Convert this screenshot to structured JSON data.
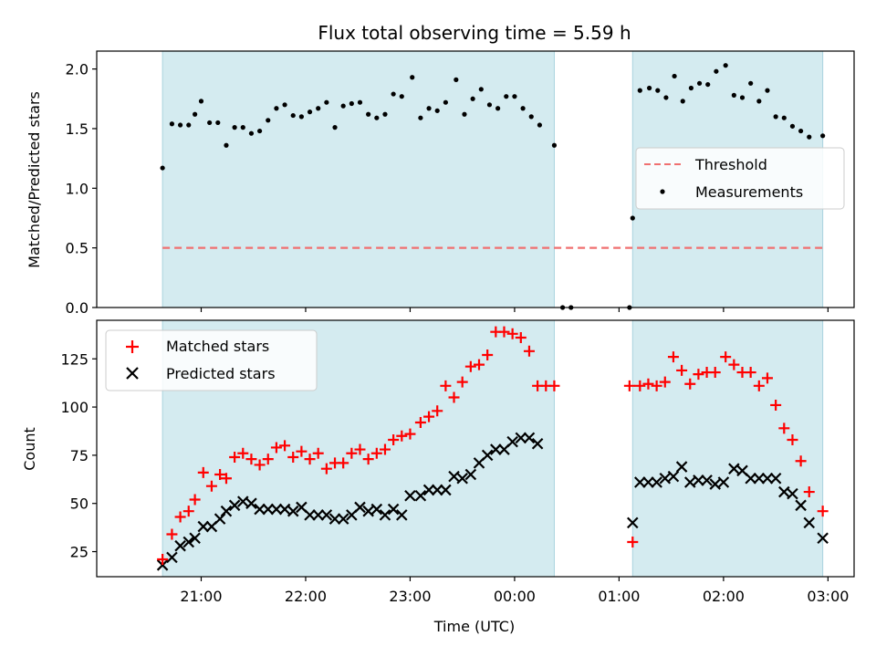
{
  "chart_data": {
    "type": "scatter",
    "title": "Flux total observing time = 5.59 h",
    "xlabel": "Time (UTC)",
    "x_ticks": [
      "21:00",
      "22:00",
      "23:00",
      "00:00",
      "01:00",
      "02:00",
      "03:00"
    ],
    "x_tick_hours": [
      21,
      22,
      23,
      24,
      25,
      26,
      27
    ],
    "x_range_hours": [
      20.0,
      27.25
    ],
    "shaded_spans_hours": [
      [
        20.63,
        24.38
      ],
      [
        25.13,
        26.95
      ]
    ],
    "colors": {
      "shade": "#d4ebf0",
      "shade_edge": "#a9d3de",
      "threshold": "#f07070",
      "matched": "#ff0000",
      "predicted": "#000000",
      "measurement": "#000000"
    },
    "top_panel": {
      "ylabel": "Matched/Predicted stars",
      "ylim": [
        0.0,
        2.15
      ],
      "y_ticks": [
        0.0,
        0.5,
        1.0,
        1.5,
        2.0
      ],
      "y_tick_labels": [
        "0.0",
        "0.5",
        "1.0",
        "1.5",
        "2.0"
      ],
      "threshold": 0.5,
      "legend": [
        "Threshold",
        "Measurements"
      ],
      "legend_position": "center-right",
      "measurements": [
        [
          20.63,
          1.17
        ],
        [
          20.72,
          1.54
        ],
        [
          20.8,
          1.53
        ],
        [
          20.88,
          1.53
        ],
        [
          20.94,
          1.62
        ],
        [
          21.0,
          1.73
        ],
        [
          21.08,
          1.55
        ],
        [
          21.16,
          1.55
        ],
        [
          21.24,
          1.36
        ],
        [
          21.32,
          1.51
        ],
        [
          21.4,
          1.51
        ],
        [
          21.48,
          1.46
        ],
        [
          21.56,
          1.48
        ],
        [
          21.64,
          1.57
        ],
        [
          21.72,
          1.67
        ],
        [
          21.8,
          1.7
        ],
        [
          21.88,
          1.61
        ],
        [
          21.96,
          1.6
        ],
        [
          22.04,
          1.64
        ],
        [
          22.12,
          1.67
        ],
        [
          22.2,
          1.72
        ],
        [
          22.28,
          1.51
        ],
        [
          22.36,
          1.69
        ],
        [
          22.44,
          1.71
        ],
        [
          22.52,
          1.72
        ],
        [
          22.6,
          1.62
        ],
        [
          22.68,
          1.59
        ],
        [
          22.76,
          1.62
        ],
        [
          22.84,
          1.79
        ],
        [
          22.92,
          1.77
        ],
        [
          23.02,
          1.93
        ],
        [
          23.1,
          1.59
        ],
        [
          23.18,
          1.67
        ],
        [
          23.26,
          1.65
        ],
        [
          23.34,
          1.72
        ],
        [
          23.44,
          1.91
        ],
        [
          23.52,
          1.62
        ],
        [
          23.6,
          1.75
        ],
        [
          23.68,
          1.83
        ],
        [
          23.76,
          1.7
        ],
        [
          23.84,
          1.67
        ],
        [
          23.92,
          1.77
        ],
        [
          24.0,
          1.77
        ],
        [
          24.08,
          1.67
        ],
        [
          24.16,
          1.6
        ],
        [
          24.24,
          1.53
        ],
        [
          24.38,
          1.36
        ],
        [
          24.46,
          0.0
        ],
        [
          24.54,
          0.0
        ],
        [
          25.1,
          0.0
        ],
        [
          25.13,
          0.75
        ],
        [
          25.2,
          1.82
        ],
        [
          25.29,
          1.84
        ],
        [
          25.37,
          1.82
        ],
        [
          25.45,
          1.76
        ],
        [
          25.53,
          1.94
        ],
        [
          25.61,
          1.73
        ],
        [
          25.69,
          1.84
        ],
        [
          25.77,
          1.88
        ],
        [
          25.85,
          1.87
        ],
        [
          25.93,
          1.98
        ],
        [
          26.02,
          2.03
        ],
        [
          26.1,
          1.78
        ],
        [
          26.18,
          1.76
        ],
        [
          26.26,
          1.88
        ],
        [
          26.34,
          1.73
        ],
        [
          26.42,
          1.82
        ],
        [
          26.5,
          1.6
        ],
        [
          26.58,
          1.59
        ],
        [
          26.66,
          1.52
        ],
        [
          26.74,
          1.48
        ],
        [
          26.82,
          1.43
        ],
        [
          26.95,
          1.44
        ]
      ]
    },
    "bottom_panel": {
      "ylabel": "Count",
      "ylim": [
        12,
        145
      ],
      "y_ticks": [
        25,
        50,
        75,
        100,
        125
      ],
      "y_tick_labels": [
        "25",
        "50",
        "75",
        "100",
        "125"
      ],
      "legend": [
        "Matched stars",
        "Predicted stars"
      ],
      "legend_position": "upper-left",
      "matched": [
        [
          20.63,
          21
        ],
        [
          20.72,
          34
        ],
        [
          20.8,
          43
        ],
        [
          20.88,
          46
        ],
        [
          20.94,
          52
        ],
        [
          21.02,
          66
        ],
        [
          21.1,
          59
        ],
        [
          21.18,
          65
        ],
        [
          21.24,
          63
        ],
        [
          21.32,
          74
        ],
        [
          21.4,
          76
        ],
        [
          21.48,
          73
        ],
        [
          21.56,
          70
        ],
        [
          21.64,
          73
        ],
        [
          21.72,
          79
        ],
        [
          21.8,
          80
        ],
        [
          21.88,
          74
        ],
        [
          21.96,
          77
        ],
        [
          22.04,
          73
        ],
        [
          22.12,
          76
        ],
        [
          22.2,
          68
        ],
        [
          22.28,
          71
        ],
        [
          22.36,
          71
        ],
        [
          22.44,
          76
        ],
        [
          22.52,
          78
        ],
        [
          22.6,
          73
        ],
        [
          22.68,
          76
        ],
        [
          22.76,
          78
        ],
        [
          22.84,
          83
        ],
        [
          22.92,
          85
        ],
        [
          23.0,
          86
        ],
        [
          23.1,
          92
        ],
        [
          23.18,
          95
        ],
        [
          23.26,
          98
        ],
        [
          23.34,
          111
        ],
        [
          23.42,
          105
        ],
        [
          23.5,
          113
        ],
        [
          23.58,
          121
        ],
        [
          23.66,
          122
        ],
        [
          23.74,
          127
        ],
        [
          23.82,
          139
        ],
        [
          23.9,
          139
        ],
        [
          23.98,
          138
        ],
        [
          24.06,
          136
        ],
        [
          24.14,
          129
        ],
        [
          24.22,
          111
        ],
        [
          24.3,
          111
        ],
        [
          24.38,
          111
        ],
        [
          25.1,
          111
        ],
        [
          25.13,
          30
        ],
        [
          25.2,
          111
        ],
        [
          25.28,
          112
        ],
        [
          25.36,
          111
        ],
        [
          25.44,
          113
        ],
        [
          25.52,
          126
        ],
        [
          25.6,
          119
        ],
        [
          25.68,
          112
        ],
        [
          25.76,
          117
        ],
        [
          25.84,
          118
        ],
        [
          25.92,
          118
        ],
        [
          26.02,
          126
        ],
        [
          26.1,
          122
        ],
        [
          26.18,
          118
        ],
        [
          26.26,
          118
        ],
        [
          26.34,
          111
        ],
        [
          26.42,
          115
        ],
        [
          26.5,
          101
        ],
        [
          26.58,
          89
        ],
        [
          26.66,
          83
        ],
        [
          26.74,
          72
        ],
        [
          26.82,
          56
        ],
        [
          26.95,
          46
        ]
      ],
      "predicted": [
        [
          20.63,
          18
        ],
        [
          20.72,
          22
        ],
        [
          20.8,
          28
        ],
        [
          20.88,
          30
        ],
        [
          20.94,
          32
        ],
        [
          21.02,
          38
        ],
        [
          21.1,
          38
        ],
        [
          21.18,
          42
        ],
        [
          21.24,
          46
        ],
        [
          21.32,
          49
        ],
        [
          21.4,
          51
        ],
        [
          21.48,
          50
        ],
        [
          21.56,
          47
        ],
        [
          21.64,
          47
        ],
        [
          21.72,
          47
        ],
        [
          21.8,
          47
        ],
        [
          21.88,
          46
        ],
        [
          21.96,
          48
        ],
        [
          22.04,
          44
        ],
        [
          22.12,
          44
        ],
        [
          22.2,
          44
        ],
        [
          22.28,
          42
        ],
        [
          22.36,
          42
        ],
        [
          22.44,
          44
        ],
        [
          22.52,
          48
        ],
        [
          22.6,
          46
        ],
        [
          22.68,
          47
        ],
        [
          22.76,
          44
        ],
        [
          22.84,
          47
        ],
        [
          22.92,
          44
        ],
        [
          23.0,
          54
        ],
        [
          23.1,
          54
        ],
        [
          23.18,
          57
        ],
        [
          23.26,
          57
        ],
        [
          23.34,
          57
        ],
        [
          23.42,
          64
        ],
        [
          23.5,
          63
        ],
        [
          23.58,
          65
        ],
        [
          23.66,
          71
        ],
        [
          23.74,
          75
        ],
        [
          23.82,
          78
        ],
        [
          23.9,
          78
        ],
        [
          23.98,
          82
        ],
        [
          24.06,
          84
        ],
        [
          24.14,
          84
        ],
        [
          24.22,
          81
        ],
        [
          25.13,
          40
        ],
        [
          25.2,
          61
        ],
        [
          25.28,
          61
        ],
        [
          25.36,
          61
        ],
        [
          25.44,
          63
        ],
        [
          25.52,
          64
        ],
        [
          25.6,
          69
        ],
        [
          25.68,
          61
        ],
        [
          25.76,
          62
        ],
        [
          25.84,
          62
        ],
        [
          25.92,
          60
        ],
        [
          26.0,
          61
        ],
        [
          26.1,
          68
        ],
        [
          26.18,
          67
        ],
        [
          26.26,
          63
        ],
        [
          26.34,
          63
        ],
        [
          26.42,
          63
        ],
        [
          26.5,
          63
        ],
        [
          26.58,
          56
        ],
        [
          26.66,
          55
        ],
        [
          26.74,
          49
        ],
        [
          26.82,
          40
        ],
        [
          26.95,
          32
        ]
      ]
    }
  }
}
